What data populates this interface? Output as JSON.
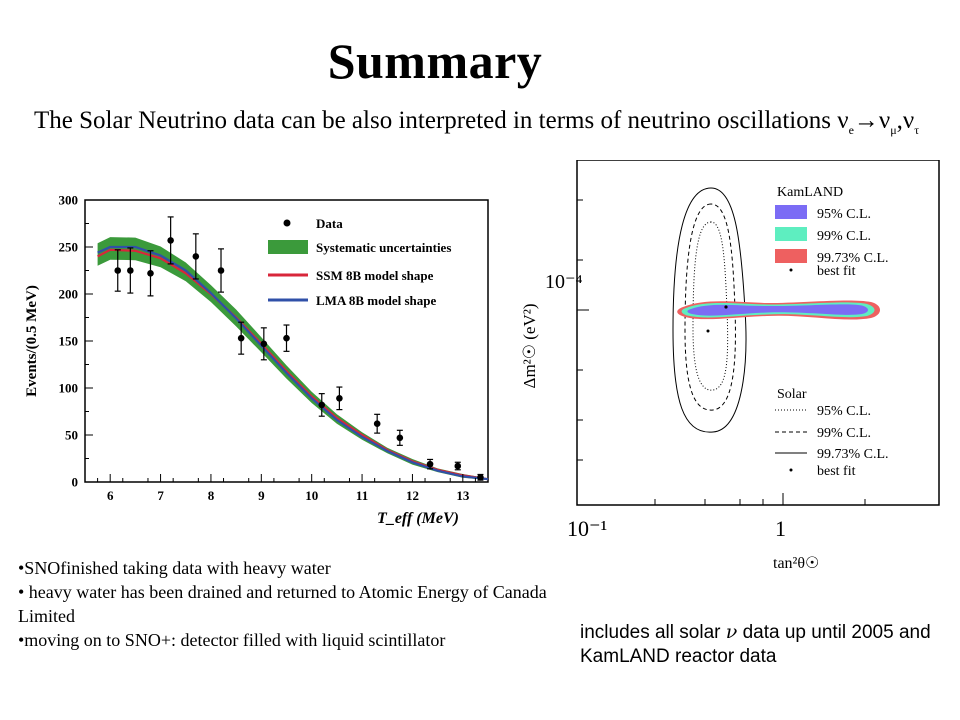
{
  "slide": {
    "title": "Summary",
    "intro_text": "The Solar Neutrino data can be also interpreted in terms of neutrino oscillations",
    "intro_symbol": "ν",
    "intro_sub_e": "e",
    "intro_arrow": "→",
    "intro_sub_mu": "μ",
    "intro_comma": ",",
    "intro_sub_tau": "τ",
    "bullets": [
      "•SNOfinished taking data with heavy water",
      "• heavy water has been drained and returned to Atomic Energy of Canada Limited",
      "•moving on to SNO+: detector filled with liquid scintillator"
    ],
    "caption_pre": "includes all solar ",
    "caption_nu": "ν",
    "caption_post": " data up until 2005 and KamLAND reactor data"
  },
  "chart_data": [
    {
      "type": "scatter",
      "xlabel": "T_eff (MeV)",
      "ylabel": "Events/(0.5 MeV)",
      "xlim": [
        5.5,
        13.5
      ],
      "ylim": [
        0,
        300
      ],
      "x_ticks": [
        6,
        7,
        8,
        9,
        10,
        11,
        12,
        13
      ],
      "y_ticks": [
        0,
        50,
        100,
        150,
        200,
        250,
        300
      ],
      "legend": {
        "position": "top-right",
        "entries": [
          "Data",
          "Systematic uncertainties",
          "SSM 8B model shape",
          "LMA 8B model shape"
        ]
      },
      "colors": {
        "data": "#000000",
        "band": "#3b9a3b",
        "ssm": "#d8263a",
        "lma": "#3050a8"
      },
      "data_points": [
        {
          "x": 6.15,
          "y": 225,
          "err": 22
        },
        {
          "x": 6.4,
          "y": 225,
          "err": 24
        },
        {
          "x": 6.8,
          "y": 222,
          "err": 24
        },
        {
          "x": 7.2,
          "y": 257,
          "err": 25
        },
        {
          "x": 7.7,
          "y": 240,
          "err": 24
        },
        {
          "x": 8.2,
          "y": 225,
          "err": 23
        },
        {
          "x": 8.6,
          "y": 153,
          "err": 17
        },
        {
          "x": 9.05,
          "y": 147,
          "err": 17
        },
        {
          "x": 9.5,
          "y": 153,
          "err": 14
        },
        {
          "x": 10.2,
          "y": 82,
          "err": 12
        },
        {
          "x": 10.55,
          "y": 89,
          "err": 12
        },
        {
          "x": 11.3,
          "y": 62,
          "err": 10
        },
        {
          "x": 11.75,
          "y": 47,
          "err": 8
        },
        {
          "x": 12.35,
          "y": 19,
          "err": 5
        },
        {
          "x": 12.9,
          "y": 17,
          "err": 4
        },
        {
          "x": 13.35,
          "y": 5,
          "err": 3
        }
      ],
      "model_x": [
        5.75,
        6.0,
        6.5,
        7.0,
        7.5,
        8.0,
        8.5,
        9.0,
        9.5,
        10.0,
        10.5,
        11.0,
        11.5,
        12.0,
        12.5,
        13.0,
        13.5
      ],
      "ssm_values": [
        240,
        247,
        246,
        238,
        222,
        200,
        175,
        147,
        118,
        91,
        68,
        50,
        34,
        22,
        13,
        7,
        3
      ],
      "lma_values": [
        244,
        250,
        250,
        241,
        225,
        201,
        174,
        145,
        116,
        89,
        66,
        48,
        33,
        21,
        12,
        6,
        3
      ],
      "band_half_width": [
        12,
        12,
        12,
        11,
        10,
        9,
        9,
        8,
        7,
        6,
        5,
        4,
        3,
        3,
        2,
        2,
        1
      ]
    },
    {
      "type": "scatter",
      "xlabel": "tan²θ☉",
      "ylabel": "Δm²☉ (eV²)",
      "x_scale": "log",
      "y_scale": "log",
      "x_tick_labels": [
        "10⁻¹",
        "1"
      ],
      "y_tick_labels": [
        "10⁻⁴"
      ],
      "legends": [
        {
          "title": "KamLAND",
          "entries": [
            "95% C.L.",
            "99% C.L.",
            "99.73% C.L.",
            "best fit"
          ],
          "colors": [
            "#7b6cf5",
            "#5eeec0",
            "#ee6060",
            "#000000"
          ]
        },
        {
          "title": "Solar",
          "entries": [
            "95% C.L.",
            "99% C.L.",
            "99.73% C.L.",
            "best fit"
          ],
          "line_styles": [
            "dotted",
            "dashed",
            "solid",
            "point"
          ]
        }
      ]
    }
  ]
}
